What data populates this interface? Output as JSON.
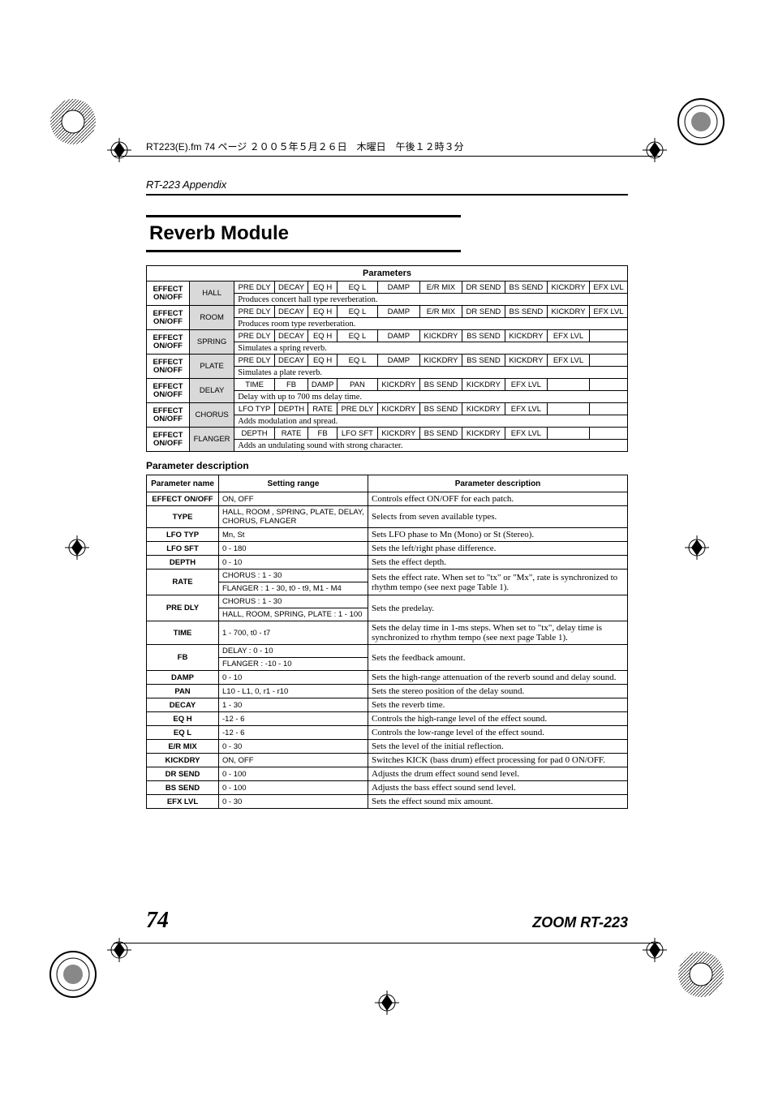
{
  "print_header": "RT223(E).fm 74 ページ ２００５年５月２６日　木曜日　午後１２時３分",
  "appendix": "RT-223 Appendix",
  "module_title": "Reverb Module",
  "param_header": "Parameters",
  "param_desc_title": "Parameter description",
  "effects": [
    {
      "name": "HALL",
      "label": "EFFECT ON/OFF",
      "cols": [
        "PRE DLY",
        "DECAY",
        "EQ H",
        "EQ L",
        "DAMP",
        "E/R MIX",
        "DR SEND",
        "BS SEND",
        "KICKDRY",
        "EFX LVL"
      ],
      "desc": "Produces concert hall type reverberation."
    },
    {
      "name": "ROOM",
      "label": "EFFECT ON/OFF",
      "cols": [
        "PRE DLY",
        "DECAY",
        "EQ H",
        "EQ L",
        "DAMP",
        "E/R MIX",
        "DR SEND",
        "BS SEND",
        "KICKDRY",
        "EFX LVL"
      ],
      "desc": "Produces room type reverberation."
    },
    {
      "name": "SPRING",
      "label": "EFFECT ON/OFF",
      "cols": [
        "PRE DLY",
        "DECAY",
        "EQ H",
        "EQ L",
        "DAMP",
        "KICKDRY",
        "BS SEND",
        "KICKDRY",
        "EFX LVL",
        ""
      ],
      "desc": "Simulates a spring reverb."
    },
    {
      "name": "PLATE",
      "label": "EFFECT ON/OFF",
      "cols": [
        "PRE DLY",
        "DECAY",
        "EQ H",
        "EQ L",
        "DAMP",
        "KICKDRY",
        "BS SEND",
        "KICKDRY",
        "EFX LVL",
        ""
      ],
      "desc": "Simulates a plate reverb."
    },
    {
      "name": "DELAY",
      "label": "EFFECT ON/OFF",
      "cols": [
        "TIME",
        "FB",
        "DAMP",
        "PAN",
        "KICKDRY",
        "BS SEND",
        "KICKDRY",
        "EFX LVL",
        "",
        ""
      ],
      "desc": "Delay with up to 700 ms delay time."
    },
    {
      "name": "CHORUS",
      "label": "EFFECT ON/OFF",
      "cols": [
        "LFO TYP",
        "DEPTH",
        "RATE",
        "PRE DLY",
        "KICKDRY",
        "BS SEND",
        "KICKDRY",
        "EFX LVL",
        "",
        ""
      ],
      "desc": "Adds modulation and spread."
    },
    {
      "name": "FLANGER",
      "label": "EFFECT ON/OFF",
      "cols": [
        "DEPTH",
        "RATE",
        "FB",
        "LFO SFT",
        "KICKDRY",
        "BS SEND",
        "KICKDRY",
        "EFX LVL",
        "",
        ""
      ],
      "desc": "Adds an undulating sound with strong character."
    }
  ],
  "param_table_headers": [
    "Parameter name",
    "Setting range",
    "Parameter description"
  ],
  "params": [
    {
      "name": "EFFECT ON/OFF",
      "ranges": [
        "ON, OFF"
      ],
      "desc": "Controls effect ON/OFF for each patch."
    },
    {
      "name": "TYPE",
      "ranges": [
        "HALL, ROOM , SPRING, PLATE, DELAY, CHORUS, FLANGER"
      ],
      "desc": "Selects from seven available types."
    },
    {
      "name": "LFO TYP",
      "ranges": [
        "Mn, St"
      ],
      "desc": "Sets LFO phase to Mn (Mono) or St (Stereo)."
    },
    {
      "name": "LFO SFT",
      "ranges": [
        "0 - 180"
      ],
      "desc": "Sets the left/right phase difference."
    },
    {
      "name": "DEPTH",
      "ranges": [
        "0 - 10"
      ],
      "desc": "Sets the effect depth."
    },
    {
      "name": "RATE",
      "ranges": [
        "CHORUS : 1 - 30",
        "FLANGER : 1 - 30,  t0 - t9, M1 - M4"
      ],
      "desc": "Sets the effect rate. When set to \"tx\" or \"Mx\", rate is synchronized to rhythm tempo (see next page Table 1)."
    },
    {
      "name": "PRE DLY",
      "ranges": [
        "CHORUS : 1 - 30",
        "HALL, ROOM, SPRING, PLATE : 1 - 100"
      ],
      "desc": "Sets the predelay."
    },
    {
      "name": "TIME",
      "ranges": [
        "1 - 700, t0 - t7"
      ],
      "desc": "Sets the delay time in 1-ms steps. When set to \"tx\", delay time is synchronized to rhythm tempo (see next page Table 1)."
    },
    {
      "name": "FB",
      "ranges": [
        "DELAY : 0 - 10",
        "FLANGER : -10 - 10"
      ],
      "desc": "Sets the feedback amount."
    },
    {
      "name": "DAMP",
      "ranges": [
        "0 - 10"
      ],
      "desc": "Sets the high-range attenuation of the reverb sound and delay sound."
    },
    {
      "name": "PAN",
      "ranges": [
        "L10 - L1, 0, r1 - r10"
      ],
      "desc": "Sets the stereo position of the delay sound."
    },
    {
      "name": "DECAY",
      "ranges": [
        "1 - 30"
      ],
      "desc": "Sets the reverb time."
    },
    {
      "name": "EQ H",
      "ranges": [
        "-12 - 6"
      ],
      "desc": "Controls the high-range level of the effect sound."
    },
    {
      "name": "EQ L",
      "ranges": [
        "-12 - 6"
      ],
      "desc": "Controls the low-range level of the effect sound."
    },
    {
      "name": "E/R MIX",
      "ranges": [
        "0 - 30"
      ],
      "desc": "Sets the level of the initial reflection."
    },
    {
      "name": "KICKDRY",
      "ranges": [
        "ON, OFF"
      ],
      "desc": "Switches KICK (bass drum) effect processing for pad 0 ON/OFF."
    },
    {
      "name": "DR SEND",
      "ranges": [
        "0 - 100"
      ],
      "desc": "Adjusts the drum effect sound send level."
    },
    {
      "name": "BS SEND",
      "ranges": [
        "0 - 100"
      ],
      "desc": "Adjusts the bass effect sound send level."
    },
    {
      "name": "EFX LVL",
      "ranges": [
        "0 - 30"
      ],
      "desc": "Sets the effect sound mix amount."
    }
  ],
  "footer": {
    "page": "74",
    "brand": "ZOOM RT-223"
  }
}
